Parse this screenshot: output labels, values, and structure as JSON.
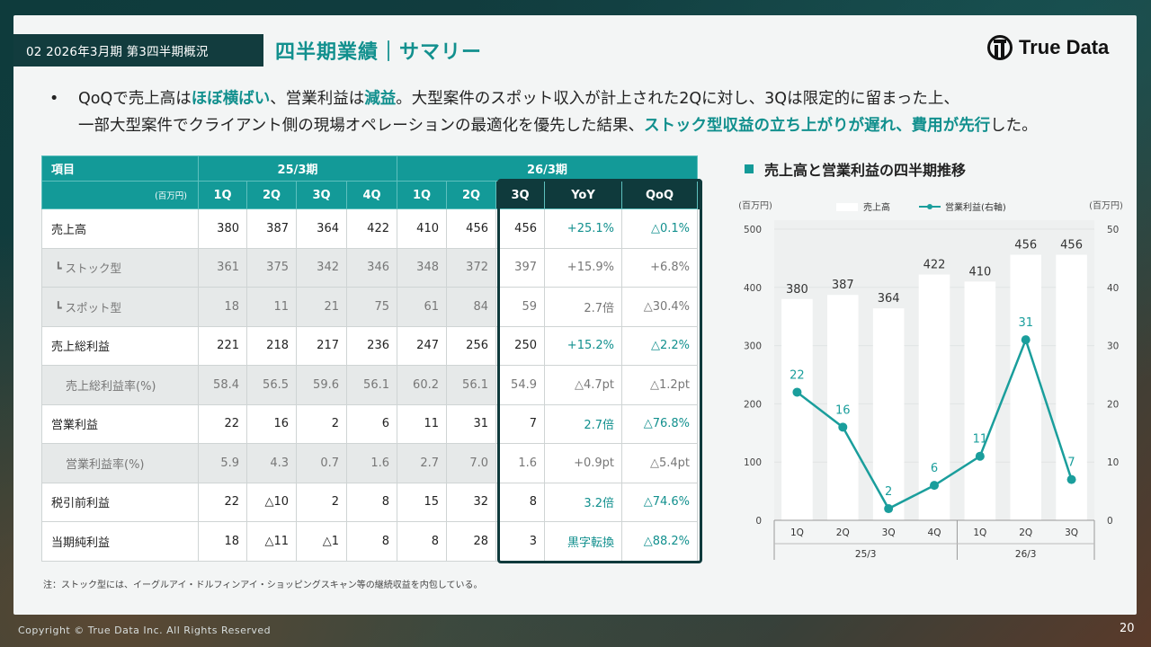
{
  "header": {
    "section": "02 2026年3月期 第3四半期概況",
    "title": "四半期業績｜サマリー",
    "logo_text": "True Data"
  },
  "bullet": {
    "line1": [
      {
        "t": "QoQで売上高は",
        "hl": false
      },
      {
        "t": "ほぼ横ばい",
        "hl": true
      },
      {
        "t": "、営業利益は",
        "hl": false
      },
      {
        "t": "減益",
        "hl": true
      },
      {
        "t": "。大型案件のスポット収入が計上された2Qに対し、3Qは限定的に留まった上、",
        "hl": false
      }
    ],
    "line2": [
      {
        "t": "一部大型案件でクライアント側の現場オペレーションの最適化を優先した結果、",
        "hl": false
      },
      {
        "t": "ストック型収益の立ち上がりが遅れ、費用が先行",
        "hl": true
      },
      {
        "t": "した。",
        "hl": false
      }
    ]
  },
  "table": {
    "item_header": "項目",
    "unit": "(百万円)",
    "group1": "25/3期",
    "group2": "26/3期",
    "columns": [
      "1Q",
      "2Q",
      "3Q",
      "4Q",
      "1Q",
      "2Q",
      "3Q",
      "YoY",
      "QoQ"
    ],
    "rows": [
      {
        "label": "売上高",
        "kind": "main",
        "cells": [
          "380",
          "387",
          "364",
          "422",
          "410",
          "456",
          "456",
          "+25.1%",
          "△0.1%"
        ]
      },
      {
        "label": "┗ ストック型",
        "kind": "child",
        "cells": [
          "361",
          "375",
          "342",
          "346",
          "348",
          "372",
          "397",
          "+15.9%",
          "+6.8%"
        ]
      },
      {
        "label": "┗ スポット型",
        "kind": "child",
        "cells": [
          "18",
          "11",
          "21",
          "75",
          "61",
          "84",
          "59",
          "2.7倍",
          "△30.4%"
        ]
      },
      {
        "label": "売上総利益",
        "kind": "main",
        "cells": [
          "221",
          "218",
          "217",
          "236",
          "247",
          "256",
          "250",
          "+15.2%",
          "△2.2%"
        ]
      },
      {
        "label": "売上総利益率(%)",
        "kind": "ratio",
        "cells": [
          "58.4",
          "56.5",
          "59.6",
          "56.1",
          "60.2",
          "56.1",
          "54.9",
          "△4.7pt",
          "△1.2pt"
        ]
      },
      {
        "label": "営業利益",
        "kind": "main",
        "cells": [
          "22",
          "16",
          "2",
          "6",
          "11",
          "31",
          "7",
          "2.7倍",
          "△76.8%"
        ]
      },
      {
        "label": "営業利益率(%)",
        "kind": "ratio",
        "cells": [
          "5.9",
          "4.3",
          "0.7",
          "1.6",
          "2.7",
          "7.0",
          "1.6",
          "+0.9pt",
          "△5.4pt"
        ]
      },
      {
        "label": "税引前利益",
        "kind": "main",
        "cells": [
          "22",
          "△10",
          "2",
          "8",
          "15",
          "32",
          "8",
          "3.2倍",
          "△74.6%"
        ]
      },
      {
        "label": "当期純利益",
        "kind": "main",
        "cells": [
          "18",
          "△11",
          "△1",
          "8",
          "8",
          "28",
          "3",
          "黒字転換",
          "△88.2%"
        ]
      }
    ],
    "note": "注：ストック型には、イーグルアイ・ドルフィンアイ・ショッピングスキャン等の継続収益を内包している。"
  },
  "chart_data": {
    "type": "bar",
    "title": "売上高と営業利益の四半期推移",
    "categories": [
      "1Q",
      "2Q",
      "3Q",
      "4Q",
      "1Q",
      "2Q",
      "3Q"
    ],
    "groups": [
      {
        "label": "25/3",
        "count": 4
      },
      {
        "label": "26/3",
        "count": 3
      }
    ],
    "left_unit": "(百万円)",
    "right_unit": "(百万円)",
    "ylim_left": [
      0,
      500
    ],
    "ylim_right": [
      0,
      50
    ],
    "left_ticks": [
      0,
      100,
      200,
      300,
      400,
      500
    ],
    "right_ticks": [
      0,
      10,
      20,
      30,
      40,
      50
    ],
    "series": [
      {
        "name": "売上高",
        "kind": "bar",
        "axis": "left",
        "color": "#ffffff",
        "values": [
          380,
          387,
          364,
          422,
          410,
          456,
          456
        ]
      },
      {
        "name": "営業利益(右軸)",
        "kind": "line",
        "axis": "right",
        "color": "#1a9e9c",
        "values": [
          22,
          16,
          2,
          6,
          11,
          31,
          7
        ]
      }
    ],
    "legend": "top"
  },
  "footer": {
    "copyright": "Copyright © True Data Inc. All Rights Reserved",
    "page": "20"
  }
}
